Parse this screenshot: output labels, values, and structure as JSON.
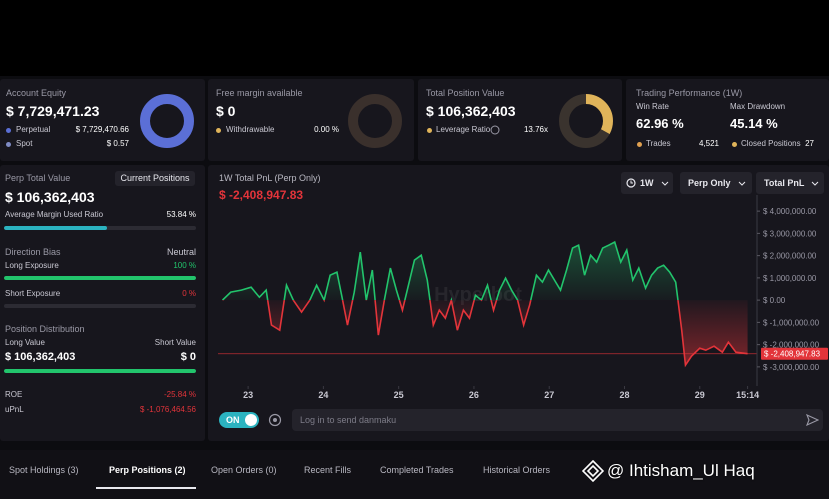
{
  "cards": [
    {
      "label": "Account Equity",
      "value": "$ 7,729,471.23",
      "rows": [
        {
          "label": "Perpetual",
          "value": "$ 7,729,470.66"
        },
        {
          "label": "Spot",
          "value": "$ 0.57"
        }
      ],
      "donut": {
        "values": [
          7729470.66,
          0.57
        ],
        "colors": [
          "#5b6fd6",
          "#e0b45a"
        ]
      }
    },
    {
      "label": "Free margin available",
      "value": "$ 0",
      "rows": [
        {
          "label": "Withdrawable",
          "value": "0.00 %"
        }
      ],
      "donut": {
        "values": [
          0,
          100
        ],
        "colors": [
          "#e0b45a",
          "#3a302c"
        ]
      }
    },
    {
      "label": "Total Position Value",
      "value": "$ 106,362,403",
      "rows": [
        {
          "label": "Leverage Ratio",
          "value": "13.76x"
        }
      ],
      "donut": {
        "values": [
          33,
          67
        ],
        "colors": [
          "#e0b45a",
          "#3a332e"
        ]
      }
    }
  ],
  "performance": {
    "label": "Trading Performance (1W)",
    "win_rate_label": "Win Rate",
    "win_rate": "62.96 %",
    "drawdown_label": "Max Drawdown",
    "drawdown": "45.14 %",
    "trades_label": "Trades",
    "trades": "4,521",
    "closed_label": "Closed Positions",
    "closed": "27"
  },
  "left": {
    "title": "Perp Total Value",
    "button": "Current Positions",
    "value": "$ 106,362,403",
    "margin": {
      "label": "Average Margin Used Ratio",
      "value_label": "53.84 %",
      "value": 53.84
    },
    "bias": {
      "label": "Direction Bias",
      "value": "Neutral"
    },
    "long": {
      "label": "Long Exposure",
      "value_label": "100 %",
      "value": 100
    },
    "short": {
      "label": "Short Exposure",
      "value_label": "0 %",
      "value": 0
    },
    "distribution": {
      "label": "Position Distribution",
      "long_label": "Long Value",
      "long_value": "$ 106,362,403",
      "short_label": "Short Value",
      "short_value": "$ 0",
      "long_share": 100
    },
    "roe": {
      "label": "ROE",
      "value": "-25.84 %"
    },
    "upnl": {
      "label": "uPnL",
      "value": "$ -1,076,464.56"
    }
  },
  "chart_data": {
    "type": "line",
    "title": "1W Total PnL (Perp Only)",
    "value_label": "$ -2,408,947.83",
    "controls": [
      "1W",
      "Perp Only",
      "Total PnL"
    ],
    "watermark": "Hyperbot",
    "color": "#22c46c",
    "negative_color": "#e3343a",
    "x": [
      22.66,
      22.77,
      22.91,
      23.04,
      23.15,
      23.24,
      23.31,
      23.42,
      23.51,
      23.6,
      23.71,
      23.82,
      23.91,
      24.01,
      24.09,
      24.18,
      24.25,
      24.32,
      24.41,
      24.49,
      24.57,
      24.65,
      24.73,
      24.81,
      24.89,
      24.97,
      25.05,
      25.13,
      25.21,
      25.3,
      25.38,
      25.46,
      25.54,
      25.62,
      25.7,
      25.78,
      25.86,
      25.94,
      26.02,
      26.1,
      26.18,
      26.26,
      26.34,
      26.42,
      26.5,
      26.58,
      26.66,
      26.74,
      26.83,
      26.91,
      26.99,
      27.07,
      27.15,
      27.23,
      27.31,
      27.39,
      27.47,
      27.55,
      27.63,
      27.71,
      27.79,
      27.87,
      27.95,
      28.03,
      28.11,
      28.19,
      28.28,
      28.36,
      28.44,
      28.52,
      28.6,
      28.68,
      28.76,
      28.81,
      28.89,
      29.0,
      29.08,
      29.19,
      29.3,
      29.38,
      29.48,
      29.635
    ],
    "values": [
      0,
      360000,
      450000,
      580000,
      130000,
      450000,
      -1120000,
      -1350000,
      670000,
      0,
      -540000,
      0,
      670000,
      0,
      1120000,
      1260000,
      90000,
      -1120000,
      360000,
      2160000,
      0,
      1350000,
      -1570000,
      0,
      1440000,
      450000,
      -450000,
      670000,
      1800000,
      2020000,
      900000,
      -1120000,
      -450000,
      -810000,
      0,
      -1350000,
      -450000,
      -810000,
      220000,
      0,
      670000,
      -450000,
      450000,
      990000,
      450000,
      0,
      -1120000,
      -220000,
      1120000,
      810000,
      1350000,
      900000,
      450000,
      1350000,
      2340000,
      2470000,
      1120000,
      2020000,
      1710000,
      2340000,
      2470000,
      2610000,
      1710000,
      2250000,
      900000,
      1440000,
      540000,
      1120000,
      1440000,
      1570000,
      1260000,
      810000,
      -1350000,
      -2920000,
      -2520000,
      -2160000,
      -2250000,
      -2070000,
      -2340000,
      -1890000,
      -2340000,
      -2408947.83
    ],
    "xlim": [
      22.6,
      29.8
    ],
    "xticks": [
      23,
      24,
      25,
      26,
      27,
      28,
      29,
      {
        "value": 29.635,
        "label": "15:14"
      }
    ],
    "ylim": [
      -3500000,
      4500000
    ],
    "yticks": [
      {
        "value": 4000000,
        "label": "$ 4,000,000.00"
      },
      {
        "value": 3000000,
        "label": "$ 3,000,000.00"
      },
      {
        "value": 2000000,
        "label": "$ 2,000,000.00"
      },
      {
        "value": 1000000,
        "label": "$ 1,000,000.00"
      },
      {
        "value": 0,
        "label": "$ 0.00"
      },
      {
        "value": -1000000,
        "label": "$ -1,000,000.00"
      },
      {
        "value": -2000000,
        "label": "$ -2,000,000.00"
      },
      {
        "value": -3000000,
        "label": "$ -3,000,000.00"
      }
    ]
  },
  "danmaku": {
    "toggle": "ON",
    "placeholder": "Log in to send danmaku"
  },
  "tabs": [
    "Spot Holdings (3)",
    "Perp Positions (2)",
    "Open Orders (0)",
    "Recent Fills",
    "Completed Trades",
    "Historical Orders"
  ],
  "watermark": "@ Ihtisham_Ul Haq"
}
